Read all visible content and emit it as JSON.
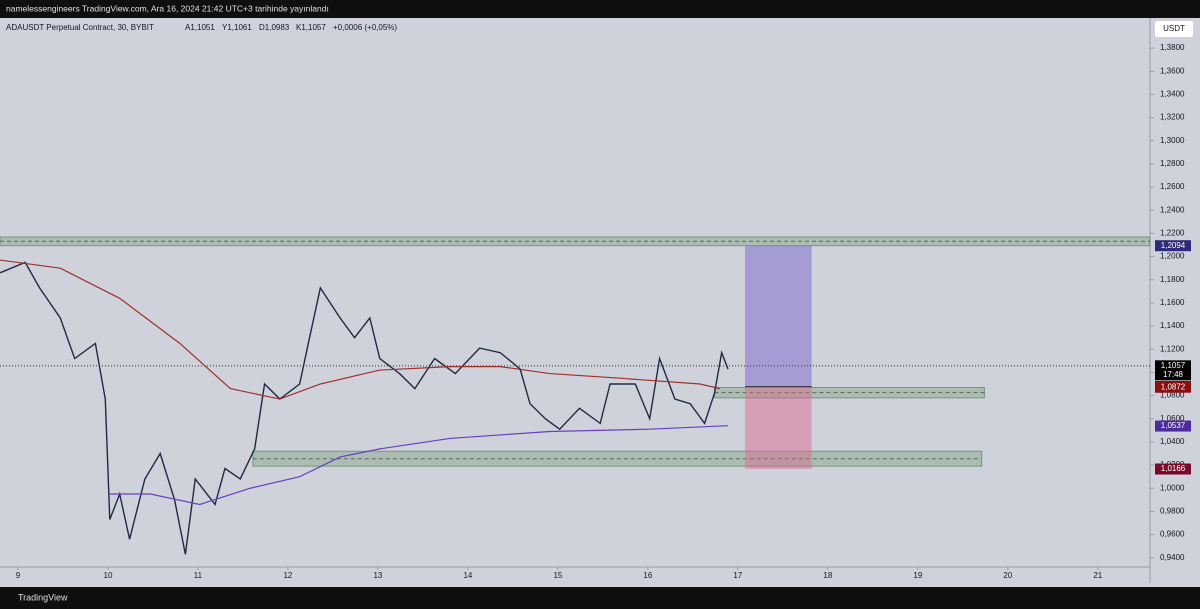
{
  "header": {
    "title": "namelessengineers TradingView.com, Ara 16, 2024 21:42 UTC+3 tarihinde yayınlandı"
  },
  "footer": {
    "brand": "TradingView"
  },
  "chart_data": {
    "type": "line",
    "title": "ADAUSDT Perpetual Contract, 30, BYBIT",
    "ohlc": [
      "A1,1051",
      "Y1,1061",
      "D1,0983",
      "K1,1057",
      "+0,0006 (+0,05%)"
    ],
    "currency": "USDT",
    "xlim": [
      8.8,
      21.58
    ],
    "ylim": [
      0.932,
      1.406
    ],
    "xticks": [
      9,
      10,
      11,
      12,
      13,
      14,
      15,
      16,
      17,
      18,
      19,
      20,
      21
    ],
    "yticks": [
      {
        "value": 0.94,
        "label": "0,9400"
      },
      {
        "value": 0.96,
        "label": "0,9600"
      },
      {
        "value": 0.98,
        "label": "0,9800"
      },
      {
        "value": 1.0,
        "label": "1,0000"
      },
      {
        "value": 1.02,
        "label": "1,0200"
      },
      {
        "value": 1.04,
        "label": "1,0400"
      },
      {
        "value": 1.06,
        "label": "1,0600"
      },
      {
        "value": 1.08,
        "label": "1,0800"
      },
      {
        "value": 1.1,
        "label": "1,1000"
      },
      {
        "value": 1.12,
        "label": "1,1200"
      },
      {
        "value": 1.14,
        "label": "1,1400"
      },
      {
        "value": 1.16,
        "label": "1,1600"
      },
      {
        "value": 1.18,
        "label": "1,1800"
      },
      {
        "value": 1.2,
        "label": "1,2000"
      },
      {
        "value": 1.22,
        "label": "1,2200"
      },
      {
        "value": 1.24,
        "label": "1,2400"
      },
      {
        "value": 1.26,
        "label": "1,2600"
      },
      {
        "value": 1.28,
        "label": "1,2800"
      },
      {
        "value": 1.3,
        "label": "1,3000"
      },
      {
        "value": 1.32,
        "label": "1,3200"
      },
      {
        "value": 1.34,
        "label": "1,3400"
      },
      {
        "value": 1.36,
        "label": "1,3600"
      },
      {
        "value": 1.38,
        "label": "1,3800"
      }
    ],
    "series": [
      {
        "color": "#1f2a44",
        "x": [
          8.8,
          9.08,
          9.24,
          9.47,
          9.63,
          9.86,
          9.97,
          10.02,
          10.13,
          10.24,
          10.41,
          10.58,
          10.74,
          10.86,
          10.97,
          11.19,
          11.3,
          11.47,
          11.63,
          11.74,
          11.91,
          12.13,
          12.24,
          12.36,
          12.58,
          12.74,
          12.91,
          13.02,
          13.24,
          13.41,
          13.63,
          13.86,
          14.13,
          14.36,
          14.58,
          14.69,
          14.86,
          15.02,
          15.24,
          15.47,
          15.58,
          15.86,
          16.02,
          16.13,
          16.3,
          16.47,
          16.63,
          16.74,
          16.82,
          16.89
        ],
        "values": [
          1.186,
          1.195,
          1.173,
          1.147,
          1.112,
          1.125,
          1.077,
          0.973,
          0.995,
          0.956,
          1.008,
          1.03,
          0.99,
          0.943,
          1.008,
          0.986,
          1.017,
          1.008,
          1.034,
          1.09,
          1.077,
          1.09,
          1.13,
          1.173,
          1.147,
          1.13,
          1.147,
          1.112,
          1.099,
          1.086,
          1.112,
          1.099,
          1.121,
          1.117,
          1.103,
          1.073,
          1.06,
          1.051,
          1.069,
          1.056,
          1.09,
          1.09,
          1.06,
          1.112,
          1.077,
          1.073,
          1.056,
          1.082,
          1.117,
          1.103
        ]
      },
      {
        "color": "#a0302a",
        "x": [
          8.8,
          9.47,
          10.13,
          10.8,
          11.36,
          11.91,
          12.36,
          13.02,
          13.8,
          14.36,
          14.91,
          15.69,
          16.58,
          16.8
        ],
        "values": [
          1.197,
          1.19,
          1.164,
          1.125,
          1.086,
          1.077,
          1.09,
          1.102,
          1.105,
          1.105,
          1.099,
          1.095,
          1.09,
          1.086
        ]
      },
      {
        "color": "#6a3fc0",
        "x": [
          10.02,
          10.47,
          11.02,
          11.58,
          12.13,
          12.58,
          13.02,
          13.8,
          14.91,
          16.02,
          16.89
        ],
        "values": [
          0.995,
          0.995,
          0.986,
          1.0,
          1.01,
          1.027,
          1.034,
          1.043,
          1.049,
          1.051,
          1.054
        ]
      }
    ],
    "zones": [
      {
        "range": [
          1.2094,
          1.217
        ]
      },
      {
        "range": [
          1.078,
          1.087
        ],
        "x": [
          16.74,
          19.74
        ]
      },
      {
        "range": [
          1.019,
          1.032
        ],
        "x": [
          11.61,
          19.71
        ]
      }
    ],
    "position": {
      "x": [
        17.08,
        17.82
      ],
      "entry": 1.0877,
      "target": 1.2094,
      "stop": 1.0166
    },
    "last_price": 1.1057,
    "countdown": "17:48",
    "price_tags": [
      {
        "value": 1.2094,
        "label": "1,2094",
        "color": "#2e2a7a"
      },
      {
        "value": 1.1057,
        "label": "1,1057",
        "color": "#000000"
      },
      {
        "value": 1.0877,
        "label": "1,0877",
        "color": "#000000"
      },
      {
        "value": 1.0872,
        "label": "1,0872",
        "color": "#8a1010"
      },
      {
        "value": 1.0537,
        "label": "1,0537",
        "color": "#4b2a9a"
      },
      {
        "value": 1.0166,
        "label": "1,0166",
        "color": "#7a0a2a"
      }
    ]
  }
}
